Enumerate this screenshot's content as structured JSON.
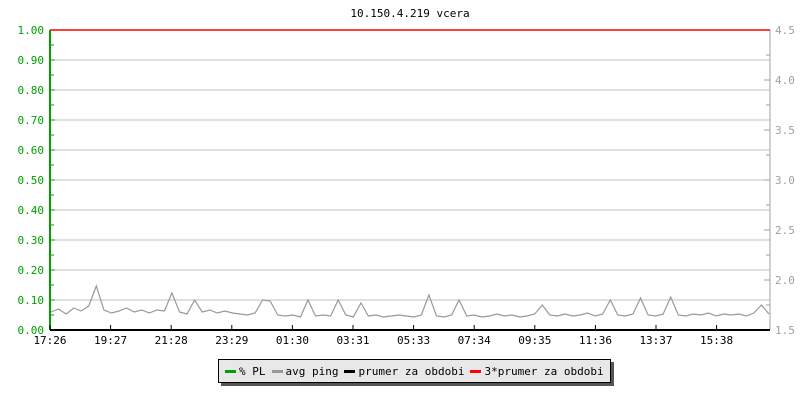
{
  "chart_data": {
    "type": "line",
    "title": "10.150.4.219 vcera",
    "x_tick_labels": [
      "17:26",
      "19:27",
      "21:28",
      "23:29",
      "01:30",
      "03:31",
      "05:33",
      "07:34",
      "09:35",
      "11:36",
      "13:37",
      "15:38"
    ],
    "left_axis": {
      "ylim": [
        0,
        1.0
      ],
      "tick_labels": [
        "0.00",
        "0.10",
        "0.20",
        "0.30",
        "0.40",
        "0.50",
        "0.60",
        "0.70",
        "0.80",
        "0.90",
        "1.00"
      ],
      "color": "#00a000"
    },
    "right_axis": {
      "ylim": [
        1.5,
        4.5
      ],
      "tick_labels": [
        "1.5",
        "2.0",
        "2.5",
        "3.0",
        "3.5",
        "4.0",
        "4.5"
      ],
      "color": "#a0a0a0"
    },
    "grid": true,
    "legend_placement": "bottom",
    "series": [
      {
        "name": "% PL",
        "color": "#00a000",
        "axis": "left",
        "values": []
      },
      {
        "name": "avg ping",
        "color": "#999999",
        "axis": "right",
        "values": [
          1.68,
          1.71,
          1.66,
          1.72,
          1.69,
          1.74,
          1.94,
          1.7,
          1.67,
          1.69,
          1.72,
          1.68,
          1.7,
          1.67,
          1.7,
          1.69,
          1.87,
          1.68,
          1.66,
          1.8,
          1.68,
          1.7,
          1.67,
          1.69,
          1.67,
          1.66,
          1.65,
          1.67,
          1.8,
          1.79,
          1.65,
          1.64,
          1.65,
          1.63,
          1.8,
          1.64,
          1.65,
          1.64,
          1.8,
          1.65,
          1.63,
          1.77,
          1.64,
          1.65,
          1.63,
          1.64,
          1.65,
          1.64,
          1.63,
          1.65,
          1.85,
          1.64,
          1.63,
          1.65,
          1.8,
          1.64,
          1.65,
          1.63,
          1.64,
          1.66,
          1.64,
          1.65,
          1.63,
          1.64,
          1.66,
          1.75,
          1.65,
          1.64,
          1.66,
          1.64,
          1.65,
          1.67,
          1.64,
          1.66,
          1.8,
          1.65,
          1.64,
          1.66,
          1.82,
          1.65,
          1.64,
          1.66,
          1.83,
          1.65,
          1.64,
          1.66,
          1.65,
          1.67,
          1.64,
          1.66,
          1.65,
          1.66,
          1.64,
          1.67,
          1.75,
          1.66
        ]
      },
      {
        "name": "prumer za obdobi",
        "color": "#000000",
        "axis": "left",
        "values": []
      },
      {
        "name": "3*prumer za obdobi",
        "color": "#ff0000",
        "axis": "left",
        "values": [
          1.0
        ]
      }
    ]
  }
}
